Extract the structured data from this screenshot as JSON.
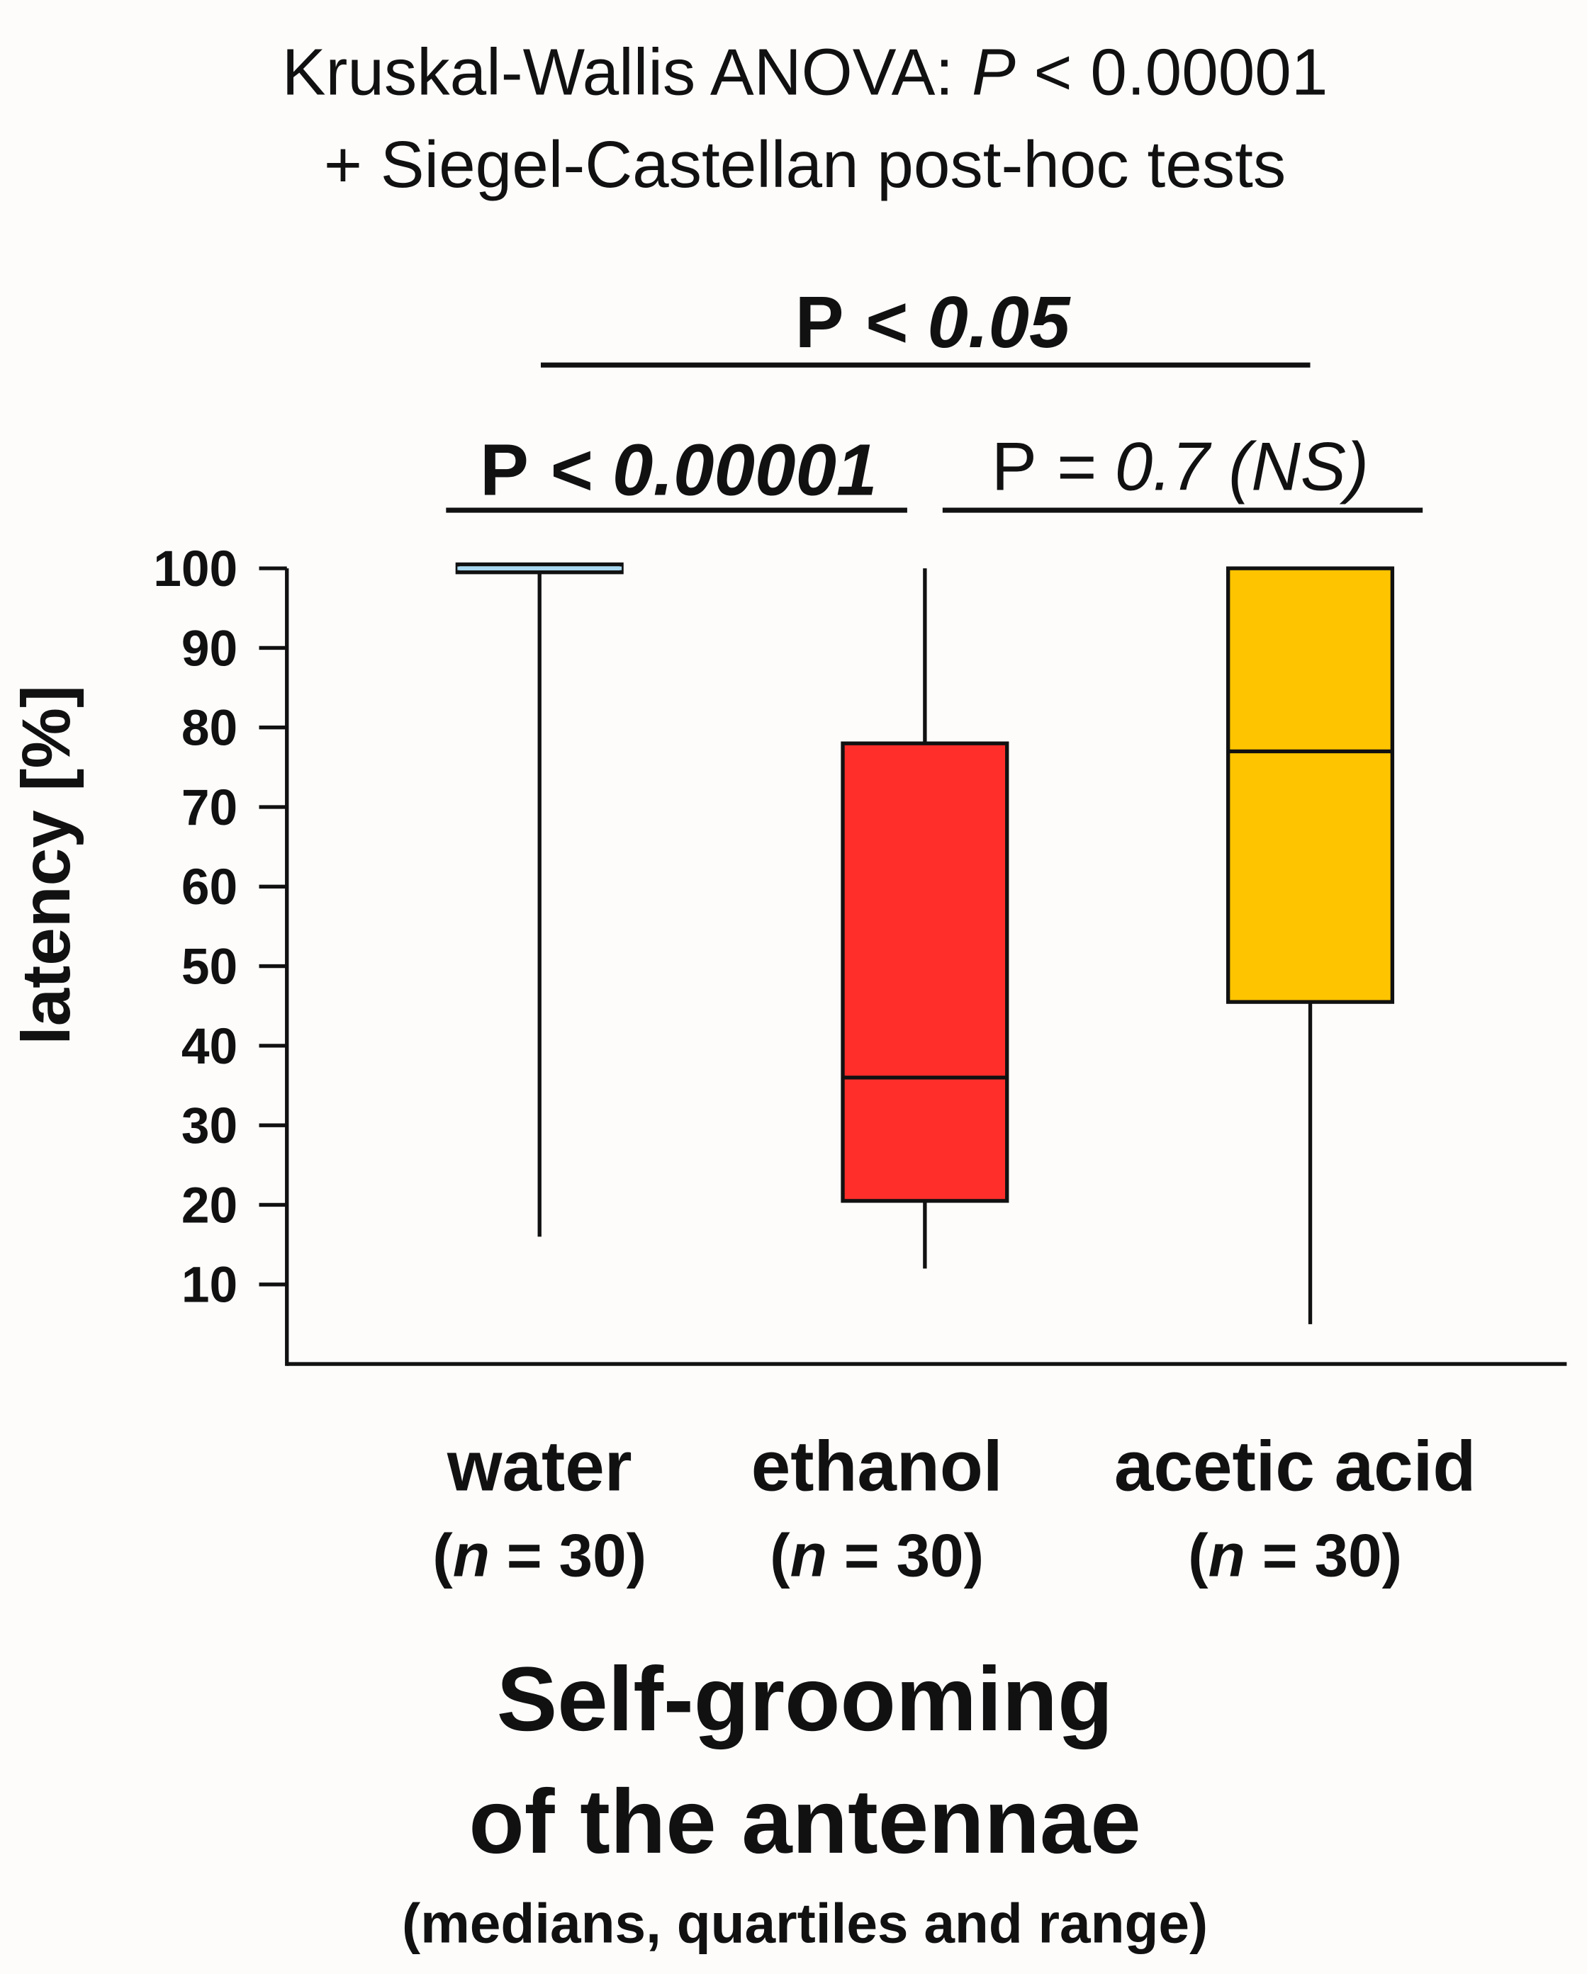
{
  "chart_data": {
    "type": "box",
    "title": [
      [
        "Kruskal-Wallis ANOVA: ",
        "P",
        " < 0.00001"
      ],
      [
        "+ Siegel-Castellan post-hoc tests"
      ]
    ],
    "ylabel": "latency [%]",
    "xlabel": [
      "Self-grooming",
      "of the antennae"
    ],
    "xsublabel": "(medians, quartiles and range)",
    "categories": [
      "water",
      "ethanol",
      "acetic acid"
    ],
    "category_notes": [
      [
        "(",
        "n",
        " = 30)"
      ],
      [
        "(",
        "n",
        " = 30)"
      ],
      [
        "(",
        "n",
        " = 30)"
      ]
    ],
    "boxes": [
      {
        "min": 16,
        "q1": 99.5,
        "median": 100,
        "q3": 100.5,
        "max": 100.5,
        "color": "#a8d8f0"
      },
      {
        "min": 12,
        "q1": 20.5,
        "median": 36,
        "q3": 78,
        "max": 100,
        "color": "#ff2e2a"
      },
      {
        "min": 5,
        "q1": 45.5,
        "median": 77,
        "q3": 100,
        "max": 100,
        "color": "#ffc400"
      }
    ],
    "comparisons": [
      {
        "from": 0,
        "to": 2,
        "label": [
          "P",
          " < 0.05"
        ],
        "bold": true
      },
      {
        "from": 0,
        "to": 1,
        "label": [
          "P",
          " < 0.00001"
        ],
        "bold": true
      },
      {
        "from": 1,
        "to": 2,
        "label": [
          "P",
          " = 0.7 (NS)"
        ],
        "bold": false
      }
    ],
    "ylim": [
      0,
      100
    ],
    "yticks": [
      10,
      20,
      30,
      40,
      50,
      60,
      70,
      80,
      90,
      100
    ]
  }
}
